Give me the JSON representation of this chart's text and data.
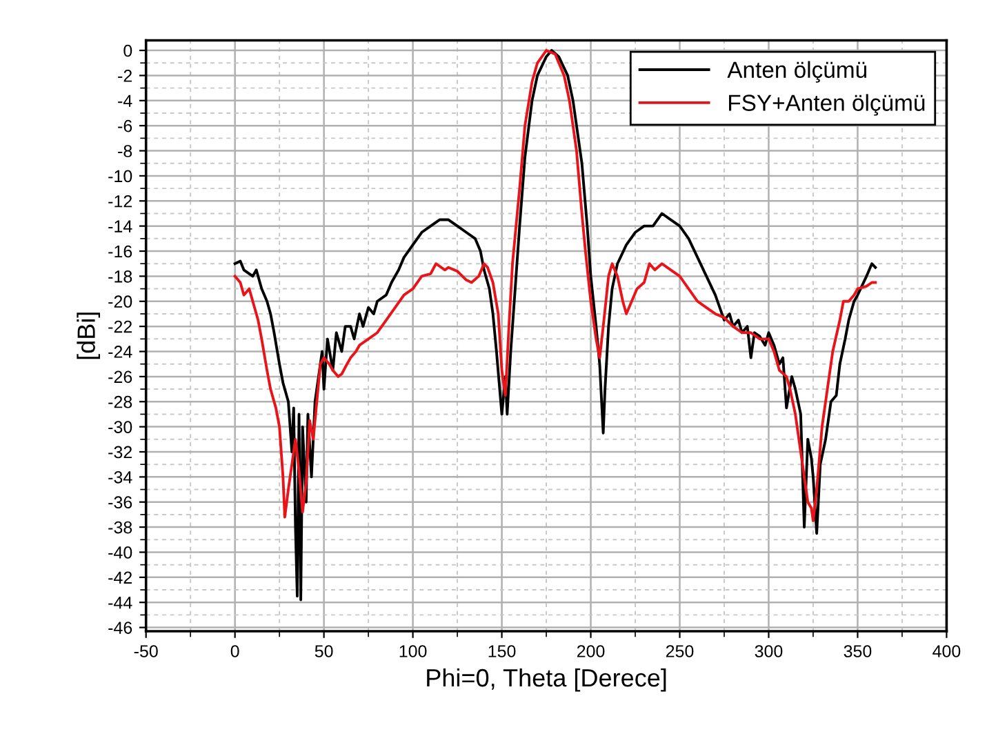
{
  "chart_data": {
    "type": "line",
    "xlabel": "Phi=0, Theta [Derece]",
    "ylabel": "[dBi]",
    "xlim": [
      -50,
      400
    ],
    "ylim": [
      -46.3,
      0.8
    ],
    "xticks": [
      -50,
      0,
      50,
      100,
      150,
      200,
      250,
      300,
      350,
      400
    ],
    "yticks": [
      {
        "value": 0,
        "label": "0"
      },
      {
        "value": -2,
        "label": "-2"
      },
      {
        "value": -4,
        "label": "-4"
      },
      {
        "value": -6,
        "label": "-6"
      },
      {
        "value": -8,
        "label": "-8"
      },
      {
        "value": -10,
        "label": "-10"
      },
      {
        "value": -12,
        "label": "-12"
      },
      {
        "value": -14,
        "label": "-14"
      },
      {
        "value": -16,
        "label": "-16"
      },
      {
        "value": -18,
        "label": "-18"
      },
      {
        "value": -20,
        "label": "-20"
      },
      {
        "value": -22,
        "label": "-22"
      },
      {
        "value": -24,
        "label": "-24"
      },
      {
        "value": -26,
        "label": "-26"
      },
      {
        "value": -28,
        "label": "-28"
      },
      {
        "value": -30,
        "label": "-30"
      },
      {
        "value": -32,
        "label": "-32"
      },
      {
        "value": -34,
        "label": "-34"
      },
      {
        "value": -36,
        "label": "-36"
      },
      {
        "value": -38,
        "label": "-38"
      },
      {
        "value": -40,
        "label": "-40"
      },
      {
        "value": -42,
        "label": "-42"
      },
      {
        "value": -44,
        "label": "-44"
      },
      {
        "value": -46,
        "label": "-46"
      }
    ],
    "grid": true,
    "legend": "top right",
    "marker": "none",
    "line_style": "solid",
    "series": [
      {
        "name": "Anten ölçümü",
        "color": "#000000",
        "x": [
          0,
          3,
          5,
          10,
          12,
          15,
          18,
          20,
          22,
          25,
          27,
          30,
          32,
          33,
          34,
          35,
          36,
          37,
          38,
          40,
          41,
          43,
          45,
          47,
          49,
          50,
          52,
          55,
          57,
          60,
          62,
          65,
          67,
          70,
          72,
          75,
          78,
          80,
          85,
          88,
          92,
          95,
          100,
          105,
          110,
          115,
          120,
          125,
          130,
          135,
          138,
          140,
          143,
          145,
          147,
          150,
          152,
          153,
          155,
          157,
          160,
          163,
          167,
          170,
          175,
          178,
          182,
          187,
          190,
          195,
          198,
          200,
          203,
          205,
          207,
          208,
          210,
          212,
          215,
          220,
          225,
          230,
          235,
          240,
          245,
          250,
          255,
          260,
          265,
          270,
          275,
          278,
          280,
          283,
          285,
          288,
          290,
          292,
          295,
          298,
          300,
          303,
          306,
          308,
          310,
          313,
          315,
          318,
          320,
          322,
          324,
          325,
          327,
          329,
          332,
          335,
          338,
          340,
          343,
          345,
          348,
          350,
          355,
          358,
          360
        ],
        "values": [
          -17,
          -16.8,
          -17.5,
          -18,
          -17.5,
          -19,
          -20,
          -21,
          -22.5,
          -25,
          -26.5,
          -28,
          -32,
          -28.5,
          -38,
          -43.5,
          -29,
          -43.8,
          -30,
          -36,
          -29,
          -34,
          -28,
          -26,
          -24,
          -27,
          -23,
          -25.5,
          -22.5,
          -24,
          -22,
          -22,
          -23,
          -21,
          -22,
          -20.5,
          -21,
          -20,
          -19.5,
          -18.5,
          -17.5,
          -16.5,
          -15.5,
          -14.5,
          -14,
          -13.5,
          -13.5,
          -14,
          -14.5,
          -15,
          -16,
          -17.5,
          -19,
          -21,
          -24,
          -29,
          -26,
          -29,
          -24,
          -20,
          -14,
          -8.5,
          -4,
          -2,
          -0.5,
          0,
          -0.5,
          -2,
          -4,
          -9,
          -14,
          -18,
          -22,
          -25,
          -30.5,
          -27,
          -22,
          -19,
          -17,
          -15.5,
          -14.5,
          -14,
          -14,
          -13,
          -13.5,
          -14,
          -15,
          -16.5,
          -18,
          -19.5,
          -21.5,
          -21,
          -22,
          -21.5,
          -22.5,
          -22,
          -24.5,
          -22.5,
          -22.8,
          -23.5,
          -22.5,
          -23.5,
          -25,
          -24.5,
          -28.5,
          -26,
          -27,
          -29,
          -38,
          -31,
          -32.5,
          -34,
          -38.5,
          -33,
          -31,
          -28,
          -27.5,
          -25,
          -23,
          -21.5,
          -20,
          -19.5,
          -18,
          -17,
          -17.3
        ]
      },
      {
        "name": "FSY+Anten ölçümü",
        "color": "#e8141a",
        "x": [
          0,
          3,
          5,
          8,
          10,
          13,
          15,
          18,
          20,
          23,
          25,
          27,
          28,
          30,
          32,
          34,
          36,
          38,
          40,
          42,
          44,
          46,
          48,
          50,
          53,
          55,
          58,
          60,
          63,
          65,
          68,
          70,
          75,
          80,
          85,
          90,
          95,
          100,
          105,
          110,
          113,
          118,
          120,
          125,
          130,
          133,
          137,
          140,
          142,
          145,
          148,
          150,
          152,
          154,
          156,
          160,
          163,
          167,
          170,
          175,
          180,
          185,
          188,
          192,
          195,
          197,
          200,
          203,
          205,
          207,
          210,
          212,
          215,
          218,
          220,
          223,
          226,
          230,
          233,
          236,
          240,
          245,
          250,
          255,
          260,
          265,
          270,
          275,
          280,
          285,
          290,
          295,
          300,
          303,
          306,
          310,
          312,
          315,
          318,
          320,
          322,
          324,
          325,
          327,
          330,
          333,
          336,
          340,
          342,
          345,
          348,
          350,
          355,
          358,
          360
        ],
        "values": [
          -18,
          -18.5,
          -19.5,
          -19,
          -20,
          -21.5,
          -23,
          -25.5,
          -27,
          -28.5,
          -30,
          -34,
          -37.2,
          -35,
          -33,
          -31,
          -33.5,
          -36.8,
          -34.5,
          -29.5,
          -31,
          -28,
          -25,
          -24.5,
          -25,
          -25.5,
          -26,
          -25.8,
          -25,
          -24.5,
          -24,
          -23.5,
          -23,
          -22.5,
          -21.5,
          -20.5,
          -19.5,
          -19,
          -18,
          -17.8,
          -17,
          -17.5,
          -17.3,
          -17.6,
          -18.3,
          -18.5,
          -18,
          -17,
          -17.3,
          -18.5,
          -21,
          -25.5,
          -27.5,
          -22,
          -17,
          -11,
          -6,
          -2.5,
          -1,
          0,
          -0.3,
          -2,
          -4,
          -8,
          -13,
          -16,
          -20,
          -23,
          -24.5,
          -22,
          -18,
          -17,
          -18,
          -20,
          -21,
          -20,
          -19,
          -18.5,
          -17,
          -17.5,
          -17,
          -17.5,
          -18,
          -19,
          -20,
          -20.5,
          -21,
          -21.3,
          -22,
          -22.5,
          -22.5,
          -23,
          -23,
          -24,
          -25.5,
          -26,
          -27,
          -29,
          -32,
          -34,
          -36,
          -36.5,
          -37.5,
          -35,
          -30,
          -27,
          -24,
          -21.5,
          -20,
          -20,
          -19.5,
          -19,
          -18.8,
          -18.5,
          -18.5
        ]
      }
    ]
  }
}
